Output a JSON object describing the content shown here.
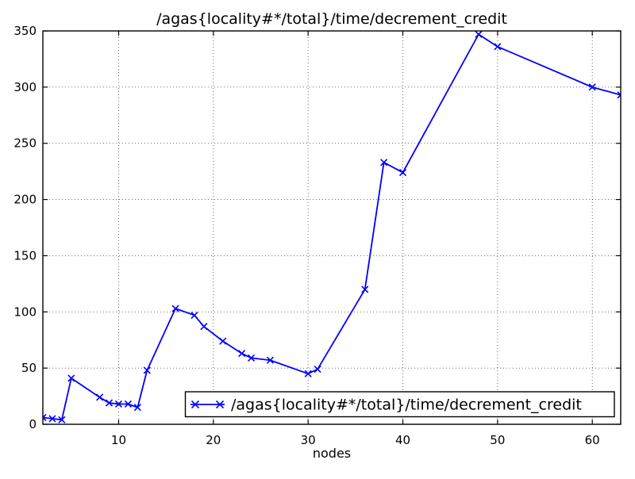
{
  "chart_data": {
    "type": "line",
    "title": "/agas{locality#*/total}/time/decrement_credit",
    "xlabel": "nodes",
    "ylabel": "",
    "xlim": [
      2,
      63
    ],
    "ylim": [
      0,
      350
    ],
    "xticks": [
      10,
      20,
      30,
      40,
      50,
      60
    ],
    "yticks": [
      0,
      50,
      100,
      150,
      200,
      250,
      300,
      350
    ],
    "grid": true,
    "grid_style": "dotted",
    "legend_position": "lower right",
    "background_color": "#ffffff",
    "axis_color": "#000000",
    "series": [
      {
        "name": "/agas{locality#*/total}/time/decrement_credit",
        "color": "#0000ff",
        "marker": "x",
        "x": [
          2,
          3,
          4,
          5,
          8,
          9,
          10,
          11,
          12,
          13,
          16,
          18,
          19,
          21,
          23,
          24,
          26,
          30,
          31,
          36,
          38,
          40,
          48,
          50,
          60,
          63
        ],
        "y": [
          6,
          5,
          4,
          41,
          24,
          19,
          18,
          18,
          15,
          48,
          103,
          97,
          87,
          74,
          63,
          59,
          57,
          45,
          49,
          120,
          233,
          224,
          347,
          336,
          300,
          293
        ]
      }
    ]
  }
}
